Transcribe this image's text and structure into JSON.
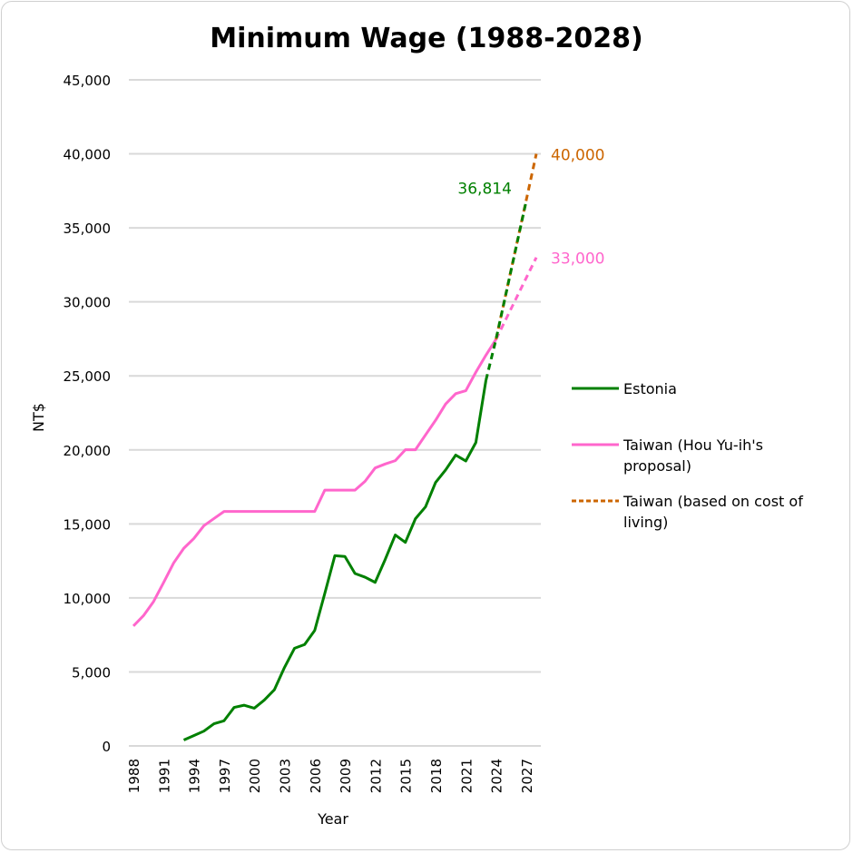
{
  "chart_data": {
    "type": "line",
    "title": "Minimum Wage (1988-2028)",
    "xlabel": "Year",
    "ylabel": "NT$",
    "xlim": [
      1988,
      2028
    ],
    "ylim": [
      0,
      45000
    ],
    "yticks": [
      0,
      5000,
      10000,
      15000,
      20000,
      25000,
      30000,
      35000,
      40000,
      45000
    ],
    "ytick_labels": [
      "0",
      "5,000",
      "10,000",
      "15,000",
      "20,000",
      "25,000",
      "30,000",
      "35,000",
      "40,000",
      "45,000"
    ],
    "xtick_labels": [
      "1988",
      "1991",
      "1994",
      "1997",
      "2000",
      "2003",
      "2006",
      "2009",
      "2012",
      "2015",
      "2018",
      "2021",
      "2024",
      "2027"
    ],
    "grid": true,
    "legend_position": "right",
    "legend": [
      {
        "label": "Estonia",
        "label_lines": [
          "Estonia"
        ],
        "color": "#008000",
        "dashed": false
      },
      {
        "label": "Taiwan (Hou Yu-ih's proposal)",
        "label_lines": [
          "Taiwan (Hou Yu-ih's",
          "proposal)"
        ],
        "color": "#ff66cc",
        "dashed": false
      },
      {
        "label": "Taiwan (based on cost of living)",
        "label_lines": [
          "Taiwan (based on cost of",
          "living)"
        ],
        "color": "#cc6600",
        "dashed": true
      }
    ],
    "series": [
      {
        "name": "Estonia",
        "color": "#008000",
        "dashed": false,
        "x": [
          1993,
          1994,
          1995,
          1996,
          1997,
          1998,
          1999,
          2000,
          2001,
          2002,
          2003,
          2004,
          2005,
          2006,
          2007,
          2008,
          2009,
          2010,
          2011,
          2012,
          2013,
          2014,
          2015,
          2016,
          2017,
          2018,
          2019,
          2020,
          2021,
          2022,
          2023
        ],
        "y": [
          400,
          700,
          1000,
          1500,
          1700,
          2600,
          2750,
          2550,
          3100,
          3800,
          5300,
          6600,
          6850,
          7800,
          10300,
          12850,
          12800,
          11650,
          11400,
          11050,
          12600,
          14250,
          13750,
          15350,
          16150,
          17800,
          18650,
          19650,
          19250,
          20500,
          24700
        ]
      },
      {
        "name": "Taiwan (Hou Yu-ih's proposal)",
        "color": "#ff66cc",
        "dashed": false,
        "x": [
          1988,
          1989,
          1990,
          1991,
          1992,
          1993,
          1994,
          1995,
          1996,
          1997,
          1998,
          1999,
          2000,
          2001,
          2002,
          2003,
          2004,
          2005,
          2006,
          2007,
          2008,
          2009,
          2010,
          2011,
          2012,
          2013,
          2014,
          2015,
          2016,
          2017,
          2018,
          2019,
          2020,
          2021,
          2022,
          2023,
          2024
        ],
        "y": [
          8100,
          8800,
          9750,
          11040,
          12365,
          13350,
          14010,
          14880,
          15360,
          15840,
          15840,
          15840,
          15840,
          15840,
          15840,
          15840,
          15840,
          15840,
          15840,
          17280,
          17280,
          17280,
          17280,
          17880,
          18780,
          19047,
          19273,
          20008,
          20008,
          21009,
          22000,
          23100,
          23800,
          24000,
          25250,
          26400,
          27470
        ]
      },
      {
        "name": "Taiwan (Hou Yu-ih's proposal) projection",
        "color": "#ff66cc",
        "dashed": true,
        "x": [
          2024,
          2028
        ],
        "y": [
          27470,
          33000
        ]
      },
      {
        "name": "Taiwan (based on cost of living)",
        "color": "#cc6600",
        "dashed": true,
        "x": [
          2024,
          2028
        ],
        "y": [
          27470,
          40000
        ]
      },
      {
        "name": "Estonia projection",
        "color": "#008000",
        "dashed": true,
        "x": [
          2023,
          2024,
          2027
        ],
        "y": [
          24700,
          27470,
          36814
        ]
      }
    ],
    "annotations": [
      {
        "text": "36,814",
        "x": 2027,
        "y": 36814,
        "color": "#008000",
        "anchor": "left-of"
      },
      {
        "text": "40,000",
        "x": 2028,
        "y": 40000,
        "color": "#cc6600",
        "anchor": "right-of"
      },
      {
        "text": "33,000",
        "x": 2028,
        "y": 33000,
        "color": "#ff66cc",
        "anchor": "right-of"
      }
    ]
  }
}
